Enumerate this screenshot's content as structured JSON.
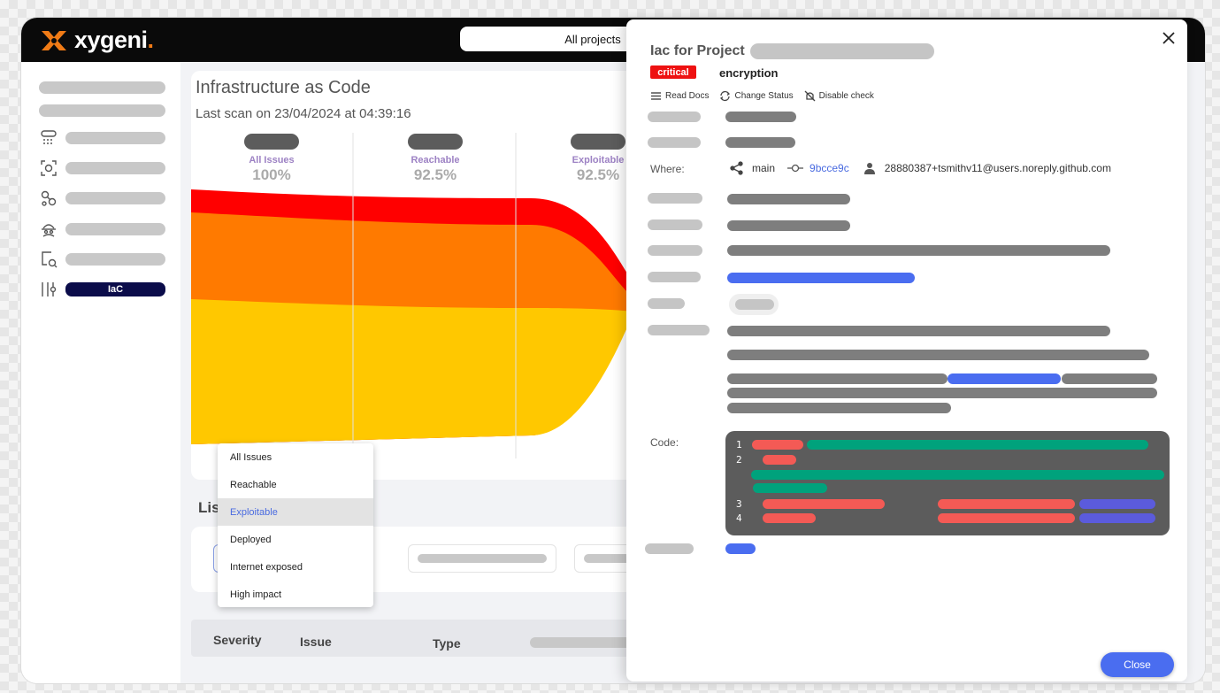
{
  "brand": {
    "name": "xygeni",
    "dot": ".",
    "accent": "#f07b16"
  },
  "header": {
    "project_selector": "All projects"
  },
  "sidebar": {
    "items": [
      {
        "icon": "placeholder",
        "label": ""
      },
      {
        "icon": "placeholder",
        "label": ""
      },
      {
        "icon": "server-list-icon",
        "label": ""
      },
      {
        "icon": "scan-icon",
        "label": ""
      },
      {
        "icon": "dependencies-icon",
        "label": ""
      },
      {
        "icon": "secrets-agent-icon",
        "label": ""
      },
      {
        "icon": "build-icon",
        "label": ""
      },
      {
        "icon": "iac-icon",
        "label": "IaC",
        "active": true
      }
    ]
  },
  "main": {
    "title": "Infrastructure as Code",
    "last_scan": "Last scan on 23/04/2024 at 04:39:16",
    "list_title": "Lis",
    "table_headers": {
      "severity": "Severity",
      "issue": "Issue",
      "type": "Type"
    }
  },
  "chart_data": {
    "type": "area",
    "title": "",
    "stages": [
      {
        "label": "All Issues",
        "percent": "100%"
      },
      {
        "label": "Reachable",
        "percent": "92.5%"
      },
      {
        "label": "Exploitable",
        "percent": "92.5%"
      }
    ],
    "series": [
      {
        "color": "#ff0000"
      },
      {
        "color": "#ff7a00"
      },
      {
        "color": "#ffc800"
      }
    ]
  },
  "dropdown": {
    "options": [
      "All Issues",
      "Reachable",
      "Exploitable",
      "Deployed",
      "Internet exposed",
      "High impact"
    ],
    "selected": "Exploitable"
  },
  "modal": {
    "title": "Iac for Project",
    "severity_badge": "critical",
    "check_name": "encryption",
    "actions": {
      "read_docs": "Read Docs",
      "change_status": "Change Status",
      "disable_check": "Disable check"
    },
    "where_label": "Where:",
    "where": {
      "branch": "main",
      "commit": "9bcce9c",
      "author": "28880387+tsmithv11@users.noreply.github.com"
    },
    "code_label": "Code:",
    "code_line_numbers": [
      "1",
      "2",
      "3",
      "4"
    ],
    "close_label": "Close"
  },
  "colors": {
    "critical": "#ee1111",
    "primary": "#4a6df0",
    "nav_active": "#0b0c4a"
  }
}
